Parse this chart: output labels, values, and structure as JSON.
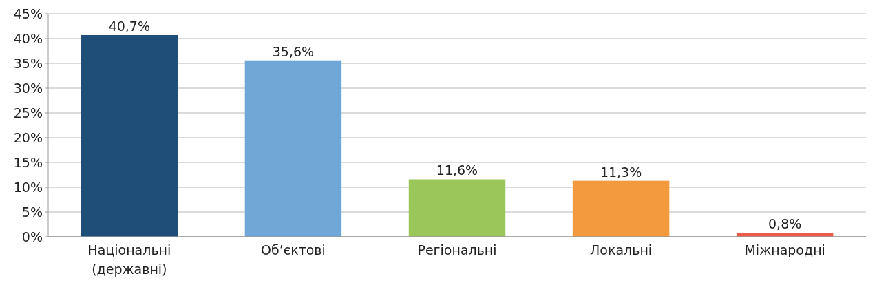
{
  "chart_data": {
    "type": "bar",
    "categories": [
      "Національні\n(державні)",
      "Об’єктові",
      "Регіональні",
      "Локальні",
      "Міжнародні"
    ],
    "values": [
      40.7,
      35.6,
      11.6,
      11.3,
      0.8
    ],
    "colors": [
      "#1f4e79",
      "#6fa8d6",
      "#9bc65a",
      "#f39a3e",
      "#ee5a4a"
    ],
    "value_labels": [
      "40,7%",
      "35,6%",
      "11,6%",
      "11,3%",
      "0,8%"
    ],
    "ylim": [
      0,
      45
    ],
    "yticks": [
      {
        "value": 0,
        "label": "0%"
      },
      {
        "value": 5,
        "label": "5%"
      },
      {
        "value": 10,
        "label": "10%"
      },
      {
        "value": 15,
        "label": "15%"
      },
      {
        "value": 20,
        "label": "20%"
      },
      {
        "value": 25,
        "label": "25%"
      },
      {
        "value": 30,
        "label": "30%"
      },
      {
        "value": 35,
        "label": "35%"
      },
      {
        "value": 40,
        "label": "40%"
      },
      {
        "value": 45,
        "label": "45%"
      }
    ],
    "grid": "y"
  }
}
